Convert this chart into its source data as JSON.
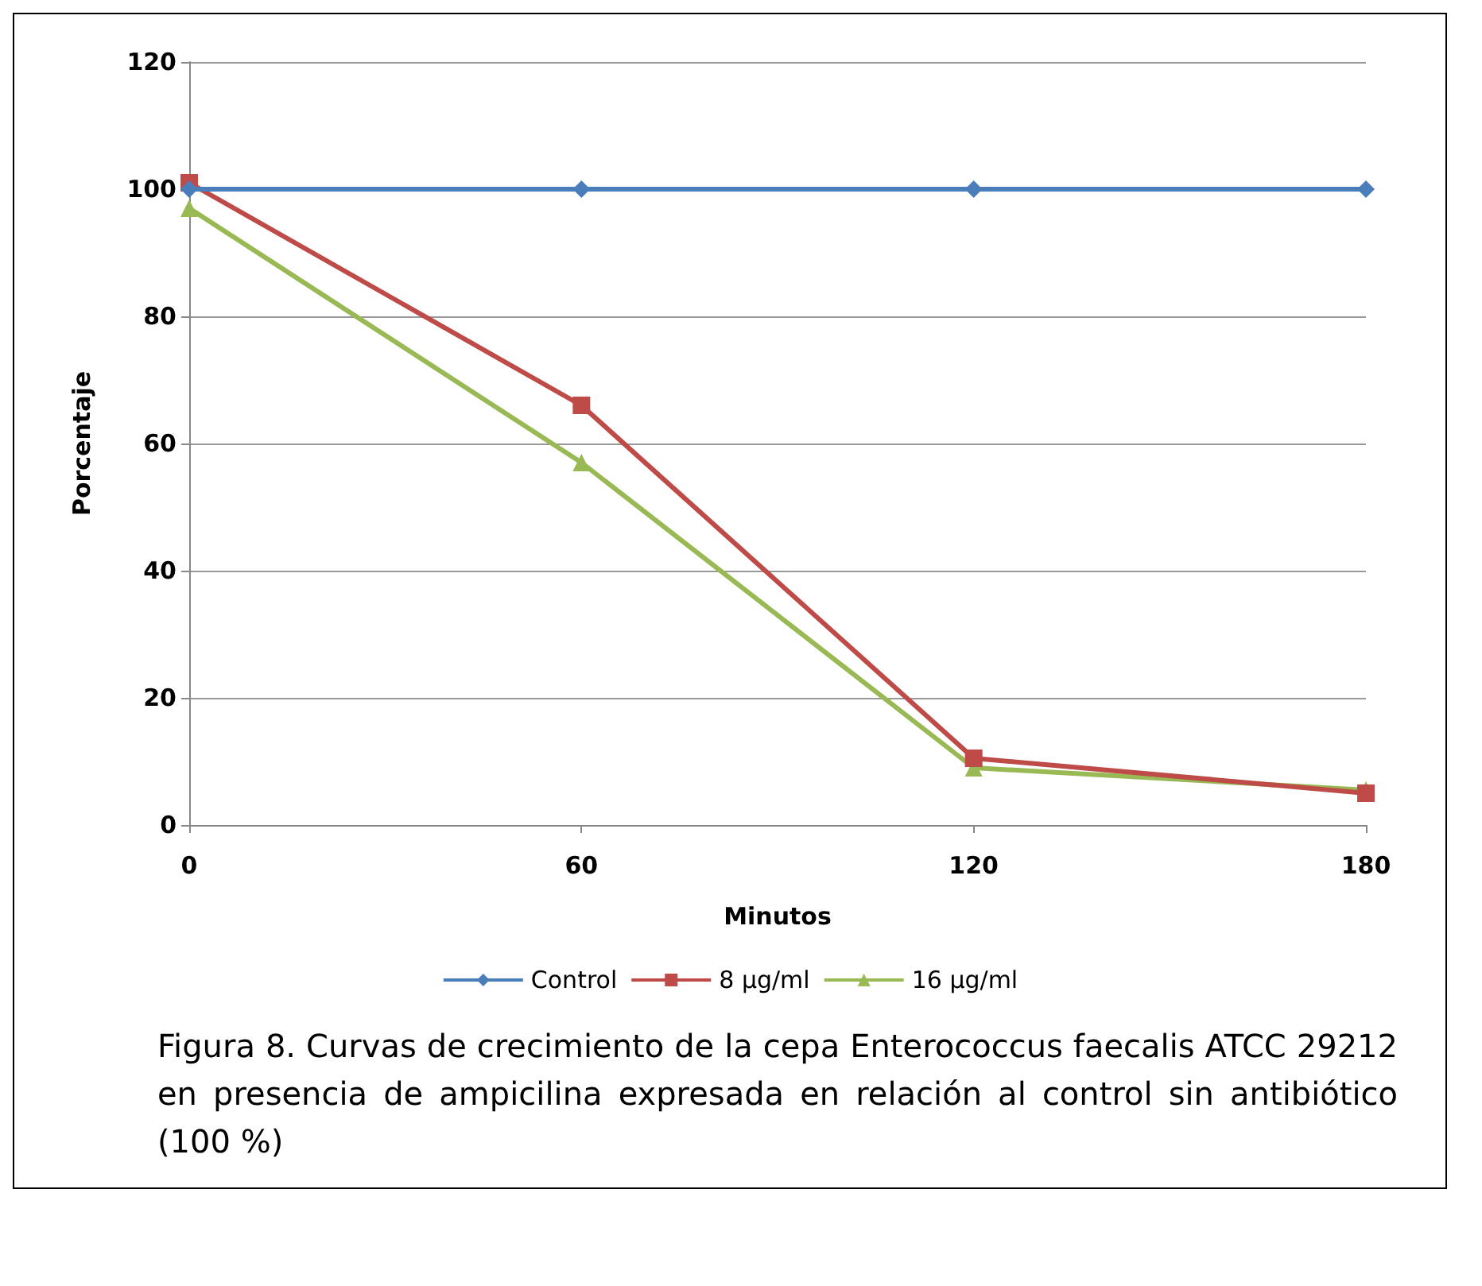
{
  "chart_data": {
    "type": "line",
    "xlabel": "Minutos",
    "ylabel": "Porcentaje",
    "categories": [
      "0",
      "60",
      "120",
      "180"
    ],
    "ylim": [
      0,
      120
    ],
    "yticks": [
      0,
      20,
      40,
      60,
      80,
      100,
      120
    ],
    "grid": "y",
    "legend": "bottom",
    "series": [
      {
        "name": "Control",
        "color": "#4a7ebb",
        "marker": "diamond",
        "values": [
          100,
          100,
          100,
          100
        ]
      },
      {
        "name": "8 µg/ml",
        "color": "#be4b48",
        "marker": "square",
        "values": [
          101,
          66,
          10.5,
          5
        ]
      },
      {
        "name": "16 µg/ml",
        "color": "#98b954",
        "marker": "triangle",
        "values": [
          97,
          57,
          9,
          5.5
        ]
      }
    ],
    "annotations": [
      "Figura 8. Curvas de crecimiento de la cepa Enterococcus faecalis ATCC 29212 en presencia de ampicilina expresada en relación al control sin antibiótico (100 %)"
    ]
  }
}
